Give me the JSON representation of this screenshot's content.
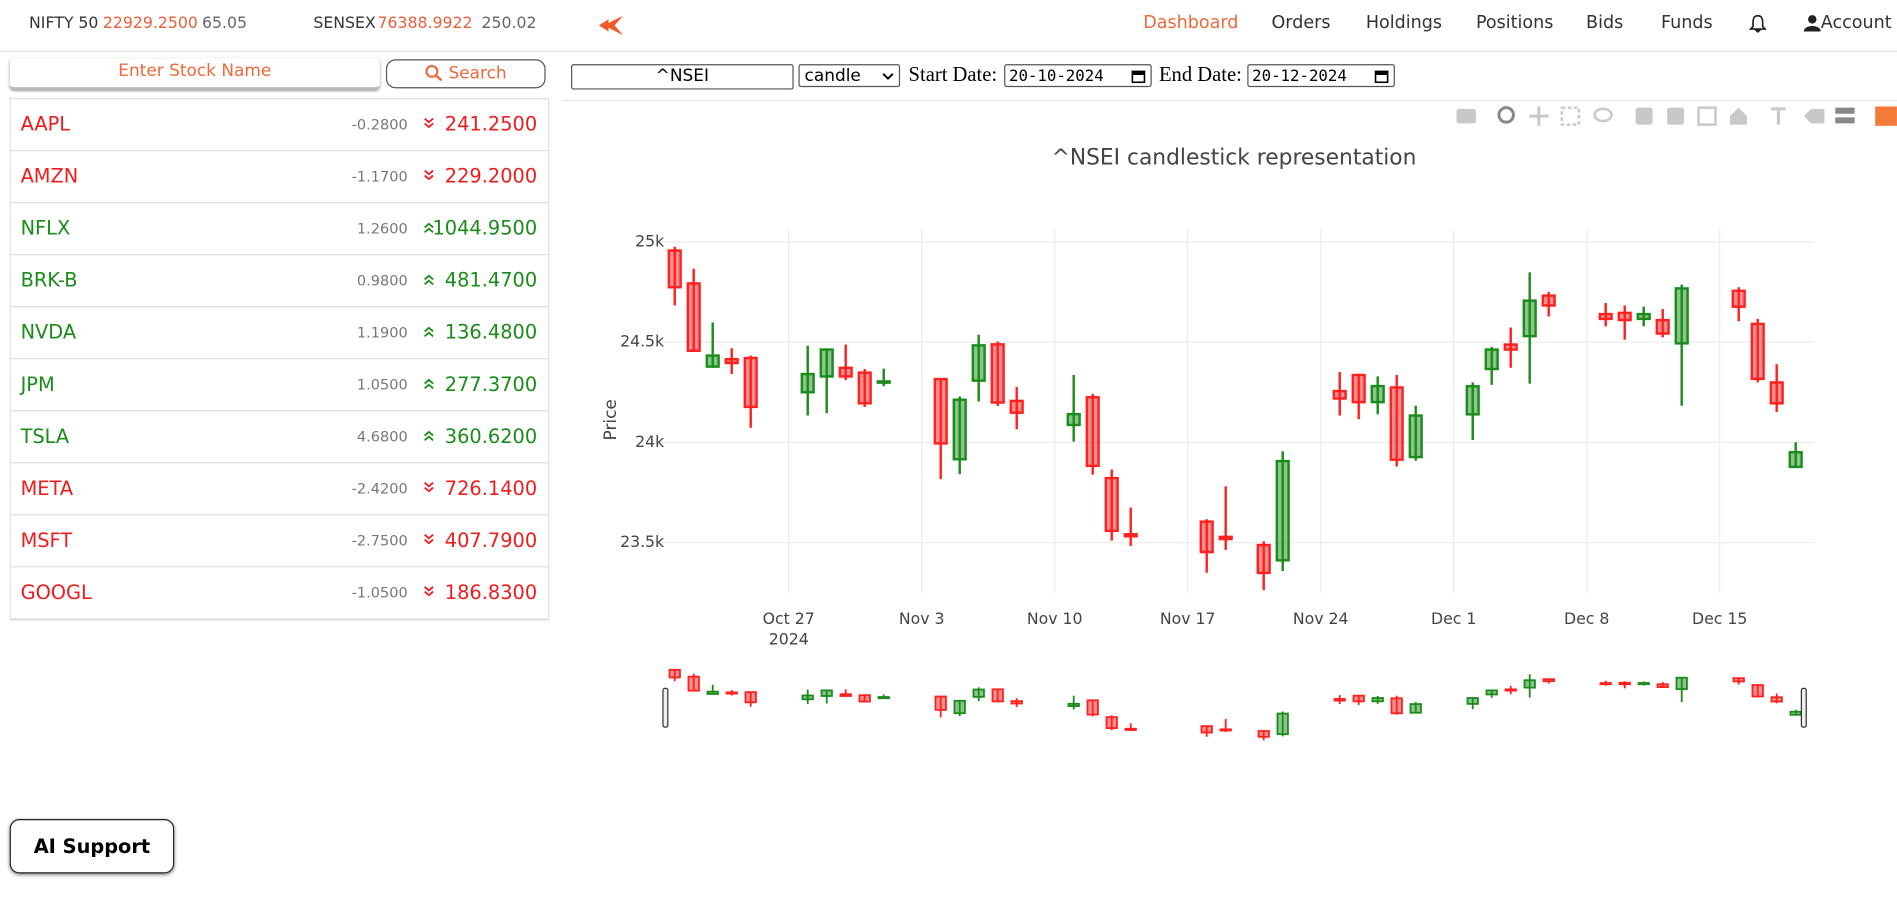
{
  "header": {
    "indices": [
      {
        "name": "NIFTY 50",
        "value": "22929.2500",
        "change": "65.05"
      },
      {
        "name": "SENSEX",
        "value": "76388.9922",
        "change": "250.02"
      }
    ],
    "nav": [
      "Dashboard",
      "Orders",
      "Holdings",
      "Positions",
      "Bids",
      "Funds"
    ],
    "account": "Account"
  },
  "watchlist": {
    "search_placeholder": "Enter Stock Name",
    "search_button": "Search",
    "stocks": [
      {
        "symbol": "AAPL",
        "change": "-0.2800",
        "price": "241.2500",
        "direction": "down"
      },
      {
        "symbol": "AMZN",
        "change": "-1.1700",
        "price": "229.2000",
        "direction": "down"
      },
      {
        "symbol": "NFLX",
        "change": "1.2600",
        "price": "1044.9500",
        "direction": "up"
      },
      {
        "symbol": "BRK-B",
        "change": "0.9800",
        "price": "481.4700",
        "direction": "up"
      },
      {
        "symbol": "NVDA",
        "change": "1.1900",
        "price": "136.4800",
        "direction": "up"
      },
      {
        "symbol": "JPM",
        "change": "1.0500",
        "price": "277.3700",
        "direction": "up"
      },
      {
        "symbol": "TSLA",
        "change": "4.6800",
        "price": "360.6200",
        "direction": "up"
      },
      {
        "symbol": "META",
        "change": "-2.4200",
        "price": "726.1400",
        "direction": "down"
      },
      {
        "symbol": "MSFT",
        "change": "-2.7500",
        "price": "407.7900",
        "direction": "down"
      },
      {
        "symbol": "GOOGL",
        "change": "-1.0500",
        "price": "186.8300",
        "direction": "down"
      }
    ]
  },
  "controls": {
    "symbol": "^NSEI",
    "chart_type": "candle",
    "start_label": "Start Date:",
    "start_date": "20-10-2024",
    "end_label": "End Date:",
    "end_date": "20-12-2024"
  },
  "chart_data": {
    "type": "candlestick",
    "title": "^NSEI candlestick representation",
    "y_label": "Price",
    "x": [
      "2024-10-21",
      "2024-10-22",
      "2024-10-23",
      "2024-10-24",
      "2024-10-25",
      "2024-10-28",
      "2024-10-29",
      "2024-10-30",
      "2024-10-31",
      "2024-11-01",
      "2024-11-04",
      "2024-11-05",
      "2024-11-06",
      "2024-11-07",
      "2024-11-08",
      "2024-11-11",
      "2024-11-12",
      "2024-11-13",
      "2024-11-14",
      "2024-11-18",
      "2024-11-19",
      "2024-11-21",
      "2024-11-22",
      "2024-11-25",
      "2024-11-26",
      "2024-11-27",
      "2024-11-28",
      "2024-11-29",
      "2024-12-02",
      "2024-12-03",
      "2024-12-04",
      "2024-12-05",
      "2024-12-06",
      "2024-12-09",
      "2024-12-10",
      "2024-12-11",
      "2024-12-12",
      "2024-12-13",
      "2024-12-16",
      "2024-12-17",
      "2024-12-18",
      "2024-12-19"
    ],
    "open": [
      24957,
      24793,
      24378,
      24415,
      24421,
      24250,
      24329,
      24372,
      24348,
      24302,
      24316,
      23916,
      24308,
      24489,
      24207,
      24087,
      24225,
      23822,
      23542,
      23605,
      23529,
      23488,
      23412,
      24256,
      24336,
      24201,
      24274,
      23927,
      24140,
      24366,
      24488,
      24530,
      24732,
      24640,
      24646,
      24616,
      24610,
      24494,
      24756,
      24591,
      24299,
      23878
    ],
    "high": [
      24976,
      24866,
      24598,
      24470,
      24433,
      24482,
      24469,
      24488,
      24366,
      24368,
      24316,
      24229,
      24537,
      24503,
      24276,
      24336,
      24242,
      23865,
      23675,
      23617,
      23781,
      23507,
      23956,
      24351,
      24343,
      24329,
      24336,
      24183,
      24299,
      24476,
      24573,
      24848,
      24750,
      24695,
      24683,
      24677,
      24665,
      24787,
      24774,
      24616,
      24390,
      24000
    ],
    "low": [
      24683,
      24451,
      24372,
      24341,
      24073,
      24134,
      24146,
      24311,
      24177,
      24280,
      23817,
      23842,
      24204,
      24182,
      24066,
      24004,
      23839,
      23510,
      23484,
      23350,
      23464,
      23263,
      23359,
      24134,
      24116,
      24140,
      23880,
      23909,
      24012,
      24287,
      24372,
      24293,
      24628,
      24579,
      24512,
      24579,
      24524,
      24183,
      24604,
      24299,
      24152,
      23872
    ],
    "close": [
      24774,
      24457,
      24433,
      24396,
      24177,
      24341,
      24463,
      24329,
      24195,
      24304,
      23995,
      24213,
      24484,
      24199,
      24148,
      24141,
      23883,
      23559,
      23532,
      23453,
      23518,
      23349,
      23907,
      24219,
      24201,
      24281,
      23914,
      24134,
      24280,
      24463,
      24463,
      24707,
      24683,
      24616,
      24610,
      24640,
      24543,
      24768,
      24677,
      24317,
      24195,
      23951
    ],
    "increasing_color": "#1a8c1a",
    "decreasing_color": "#ff2020",
    "xlim": [
      "2024-10-20",
      "2024-12-20"
    ],
    "xticks": [
      {
        "value": "2024-10-27",
        "label": "Oct 27",
        "year": "2024"
      },
      {
        "value": "2024-11-03",
        "label": "Nov 3"
      },
      {
        "value": "2024-11-10",
        "label": "Nov 10"
      },
      {
        "value": "2024-11-17",
        "label": "Nov 17"
      },
      {
        "value": "2024-11-24",
        "label": "Nov 24"
      },
      {
        "value": "2024-12-01",
        "label": "Dec 1"
      },
      {
        "value": "2024-12-08",
        "label": "Dec 8"
      },
      {
        "value": "2024-12-15",
        "label": "Dec 15"
      }
    ],
    "ylim": [
      23250,
      25060
    ],
    "yticks": [
      {
        "value": 23500,
        "label": "23.5k"
      },
      {
        "value": 24000,
        "label": "24k"
      },
      {
        "value": 24500,
        "label": "24.5k"
      },
      {
        "value": 25000,
        "label": "25k"
      }
    ],
    "grid": true,
    "rangeslider": true
  },
  "ai_support": "AI Support"
}
